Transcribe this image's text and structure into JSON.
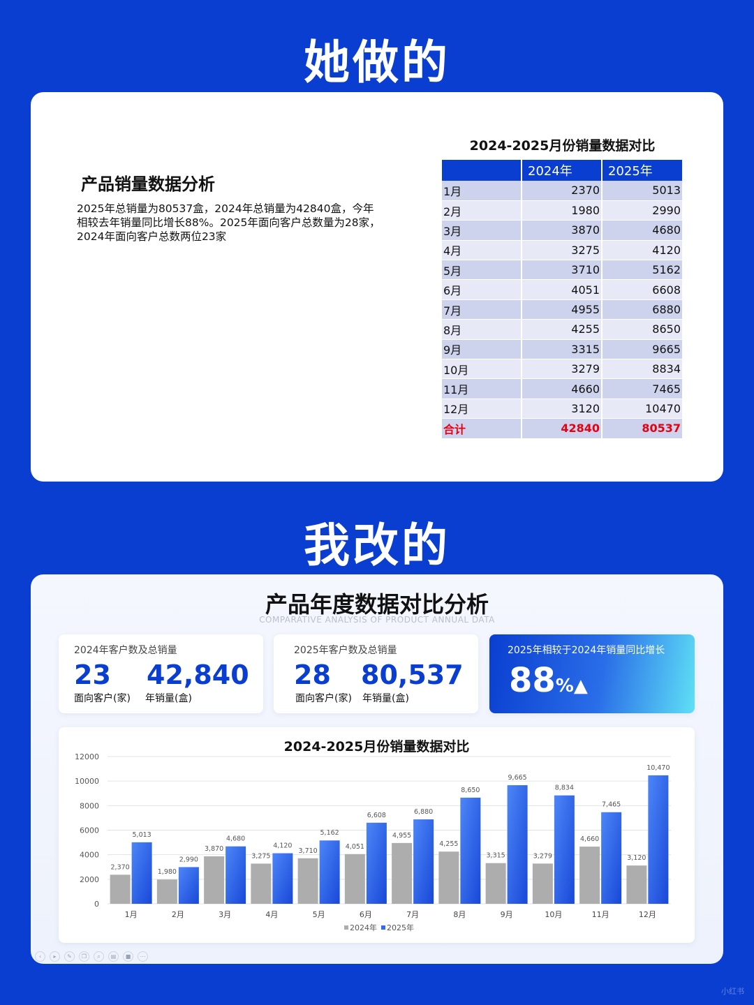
{
  "headings": {
    "before": "她做的",
    "after": "我改的"
  },
  "before": {
    "title": "产品销量数据分析",
    "description": "2025年总销量为80537盒，2024年总销量为42840盒，今年相较去年销量同比增长88%。2025年面向客户总数量为28家，2024年面向客户总数两位23家",
    "table_title": "2024-2025月份销量数据对比",
    "columns": [
      "",
      "2024年",
      "2025年"
    ],
    "rows": [
      [
        "1月",
        "2370",
        "5013"
      ],
      [
        "2月",
        "1980",
        "2990"
      ],
      [
        "3月",
        "3870",
        "4680"
      ],
      [
        "4月",
        "3275",
        "4120"
      ],
      [
        "5月",
        "3710",
        "5162"
      ],
      [
        "6月",
        "4051",
        "6608"
      ],
      [
        "7月",
        "4955",
        "6880"
      ],
      [
        "8月",
        "4255",
        "8650"
      ],
      [
        "9月",
        "3315",
        "9665"
      ],
      [
        "10月",
        "3279",
        "8834"
      ],
      [
        "11月",
        "4660",
        "7465"
      ],
      [
        "12月",
        "3120",
        "10470"
      ]
    ],
    "total": [
      "合计",
      "42840",
      "80537"
    ]
  },
  "after": {
    "title": "产品年度数据对比分析",
    "subtitle": "COMPARATIVE ANALYSIS OF PRODUCT ANNUAL DATA",
    "kpi1": {
      "label": "2024年客户数及总销量",
      "customers": "23",
      "customers_unit": "面向客户(家)",
      "sales": "42,840",
      "sales_unit": "年销量(盒)"
    },
    "kpi2": {
      "label": "2025年客户数及总销量",
      "customers": "28",
      "customers_unit": "面向客户(家)",
      "sales": "80,537",
      "sales_unit": "年销量(盒)"
    },
    "kpi3": {
      "label": "2025年相较于2024年销量同比增长",
      "value": "88",
      "unit": "%▲"
    },
    "toolbar_icons": [
      "nav-back-icon",
      "play-icon",
      "pen-icon",
      "copy-icon",
      "zoom-icon",
      "slides-icon",
      "camera-icon",
      "more-icon"
    ]
  },
  "watermark": "小红书",
  "colors": {
    "brand_blue": "#0a3ed0",
    "bar_2024": "#aeadad",
    "bar_2025": "#2f6cf0",
    "total_red": "#e60012"
  },
  "chart_data": {
    "type": "bar",
    "title": "2024-2025月份销量数据对比",
    "categories": [
      "1月",
      "2月",
      "3月",
      "4月",
      "5月",
      "6月",
      "7月",
      "8月",
      "9月",
      "10月",
      "11月",
      "12月"
    ],
    "series": [
      {
        "name": "2024年",
        "values": [
          2370,
          1980,
          3870,
          3275,
          3710,
          4051,
          4955,
          4255,
          3315,
          3279,
          4660,
          3120
        ],
        "labels": [
          "2,370",
          "1,980",
          "3,870",
          "3,275",
          "3,710",
          "4,051",
          "4,955",
          "4,255",
          "3,315",
          "3,279",
          "4,660",
          "3,120"
        ]
      },
      {
        "name": "2025年",
        "values": [
          5013,
          2990,
          4680,
          4120,
          5162,
          6608,
          6880,
          8650,
          9665,
          8834,
          7465,
          10470
        ],
        "labels": [
          "5,013",
          "2,990",
          "4,680",
          "4,120",
          "5,162",
          "6,608",
          "6,880",
          "8,650",
          "9,665",
          "8,834",
          "7,465",
          "10,470"
        ]
      }
    ],
    "yticks": [
      0,
      2000,
      4000,
      6000,
      8000,
      10000,
      12000
    ],
    "ylim": [
      0,
      12000
    ],
    "grid": true,
    "legend_position": "bottom"
  }
}
